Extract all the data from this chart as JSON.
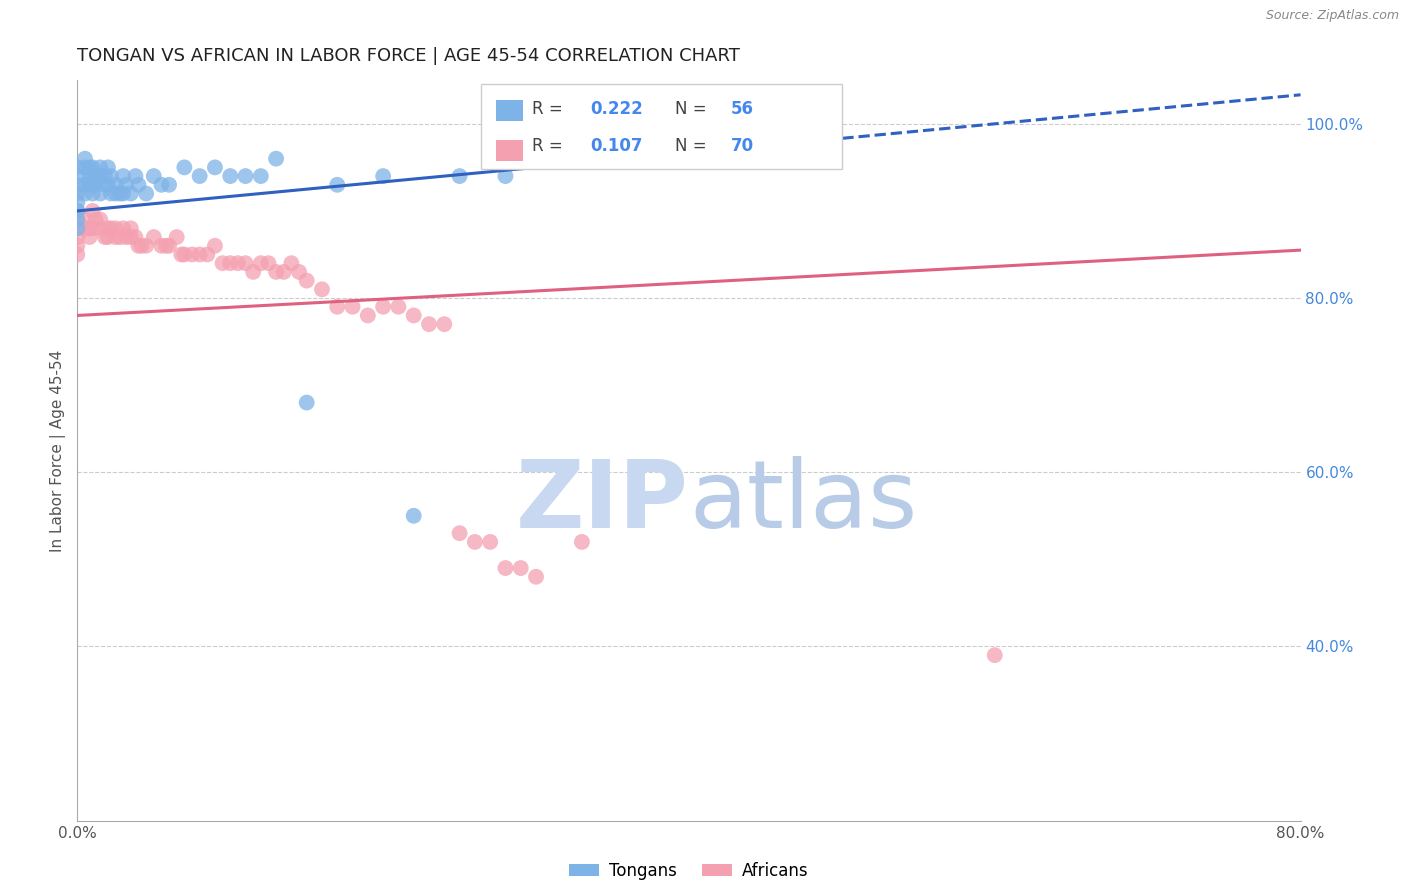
{
  "title": "TONGAN VS AFRICAN IN LABOR FORCE | AGE 45-54 CORRELATION CHART",
  "source_text": "Source: ZipAtlas.com",
  "ylabel": "In Labor Force | Age 45-54",
  "xlim": [
    0.0,
    0.8
  ],
  "ylim": [
    0.2,
    1.05
  ],
  "y_ticks_right": [
    0.4,
    0.6,
    0.8,
    1.0
  ],
  "y_tick_labels_right": [
    "40.0%",
    "60.0%",
    "80.0%",
    "100.0%"
  ],
  "tongan_R": 0.222,
  "tongan_N": 56,
  "african_R": 0.107,
  "african_N": 70,
  "tongan_color": "#7EB3E8",
  "african_color": "#F4A0B0",
  "tongan_line_color": "#3060C0",
  "african_line_color": "#E06080",
  "legend_label_tongan": "Tongans",
  "legend_label_african": "Africans",
  "watermark_zip_color": "#C8D8F0",
  "watermark_atlas_color": "#B8CCE8",
  "tongan_x": [
    0.0,
    0.0,
    0.0,
    0.0,
    0.0,
    0.0,
    0.0,
    0.0,
    0.005,
    0.005,
    0.005,
    0.005,
    0.008,
    0.008,
    0.008,
    0.01,
    0.01,
    0.01,
    0.01,
    0.012,
    0.012,
    0.015,
    0.015,
    0.015,
    0.018,
    0.018,
    0.02,
    0.02,
    0.022,
    0.022,
    0.025,
    0.025,
    0.028,
    0.03,
    0.03,
    0.032,
    0.035,
    0.038,
    0.04,
    0.045,
    0.05,
    0.055,
    0.06,
    0.07,
    0.08,
    0.09,
    0.1,
    0.11,
    0.12,
    0.13,
    0.15,
    0.17,
    0.2,
    0.22,
    0.25,
    0.28
  ],
  "tongan_y": [
    0.95,
    0.94,
    0.93,
    0.92,
    0.91,
    0.9,
    0.89,
    0.88,
    0.96,
    0.95,
    0.93,
    0.92,
    0.95,
    0.94,
    0.93,
    0.95,
    0.94,
    0.93,
    0.92,
    0.94,
    0.93,
    0.95,
    0.94,
    0.92,
    0.94,
    0.93,
    0.95,
    0.93,
    0.94,
    0.92,
    0.93,
    0.92,
    0.92,
    0.94,
    0.92,
    0.93,
    0.92,
    0.94,
    0.93,
    0.92,
    0.94,
    0.93,
    0.93,
    0.95,
    0.94,
    0.95,
    0.94,
    0.94,
    0.94,
    0.96,
    0.68,
    0.93,
    0.94,
    0.55,
    0.94,
    0.94
  ],
  "african_x": [
    0.0,
    0.0,
    0.0,
    0.0,
    0.0,
    0.0,
    0.005,
    0.005,
    0.008,
    0.008,
    0.01,
    0.01,
    0.012,
    0.015,
    0.015,
    0.018,
    0.02,
    0.02,
    0.022,
    0.025,
    0.025,
    0.028,
    0.03,
    0.032,
    0.035,
    0.035,
    0.038,
    0.04,
    0.042,
    0.045,
    0.05,
    0.055,
    0.058,
    0.06,
    0.065,
    0.068,
    0.07,
    0.075,
    0.08,
    0.085,
    0.09,
    0.095,
    0.1,
    0.105,
    0.11,
    0.115,
    0.12,
    0.125,
    0.13,
    0.135,
    0.14,
    0.145,
    0.15,
    0.16,
    0.17,
    0.18,
    0.19,
    0.2,
    0.21,
    0.22,
    0.23,
    0.24,
    0.25,
    0.26,
    0.27,
    0.28,
    0.29,
    0.3,
    0.33,
    0.6
  ],
  "african_y": [
    0.9,
    0.89,
    0.88,
    0.87,
    0.86,
    0.85,
    0.89,
    0.88,
    0.88,
    0.87,
    0.9,
    0.88,
    0.89,
    0.89,
    0.88,
    0.87,
    0.88,
    0.87,
    0.88,
    0.88,
    0.87,
    0.87,
    0.88,
    0.87,
    0.88,
    0.87,
    0.87,
    0.86,
    0.86,
    0.86,
    0.87,
    0.86,
    0.86,
    0.86,
    0.87,
    0.85,
    0.85,
    0.85,
    0.85,
    0.85,
    0.86,
    0.84,
    0.84,
    0.84,
    0.84,
    0.83,
    0.84,
    0.84,
    0.83,
    0.83,
    0.84,
    0.83,
    0.82,
    0.81,
    0.79,
    0.79,
    0.78,
    0.79,
    0.79,
    0.78,
    0.77,
    0.77,
    0.53,
    0.52,
    0.52,
    0.49,
    0.49,
    0.48,
    0.52,
    0.39
  ]
}
